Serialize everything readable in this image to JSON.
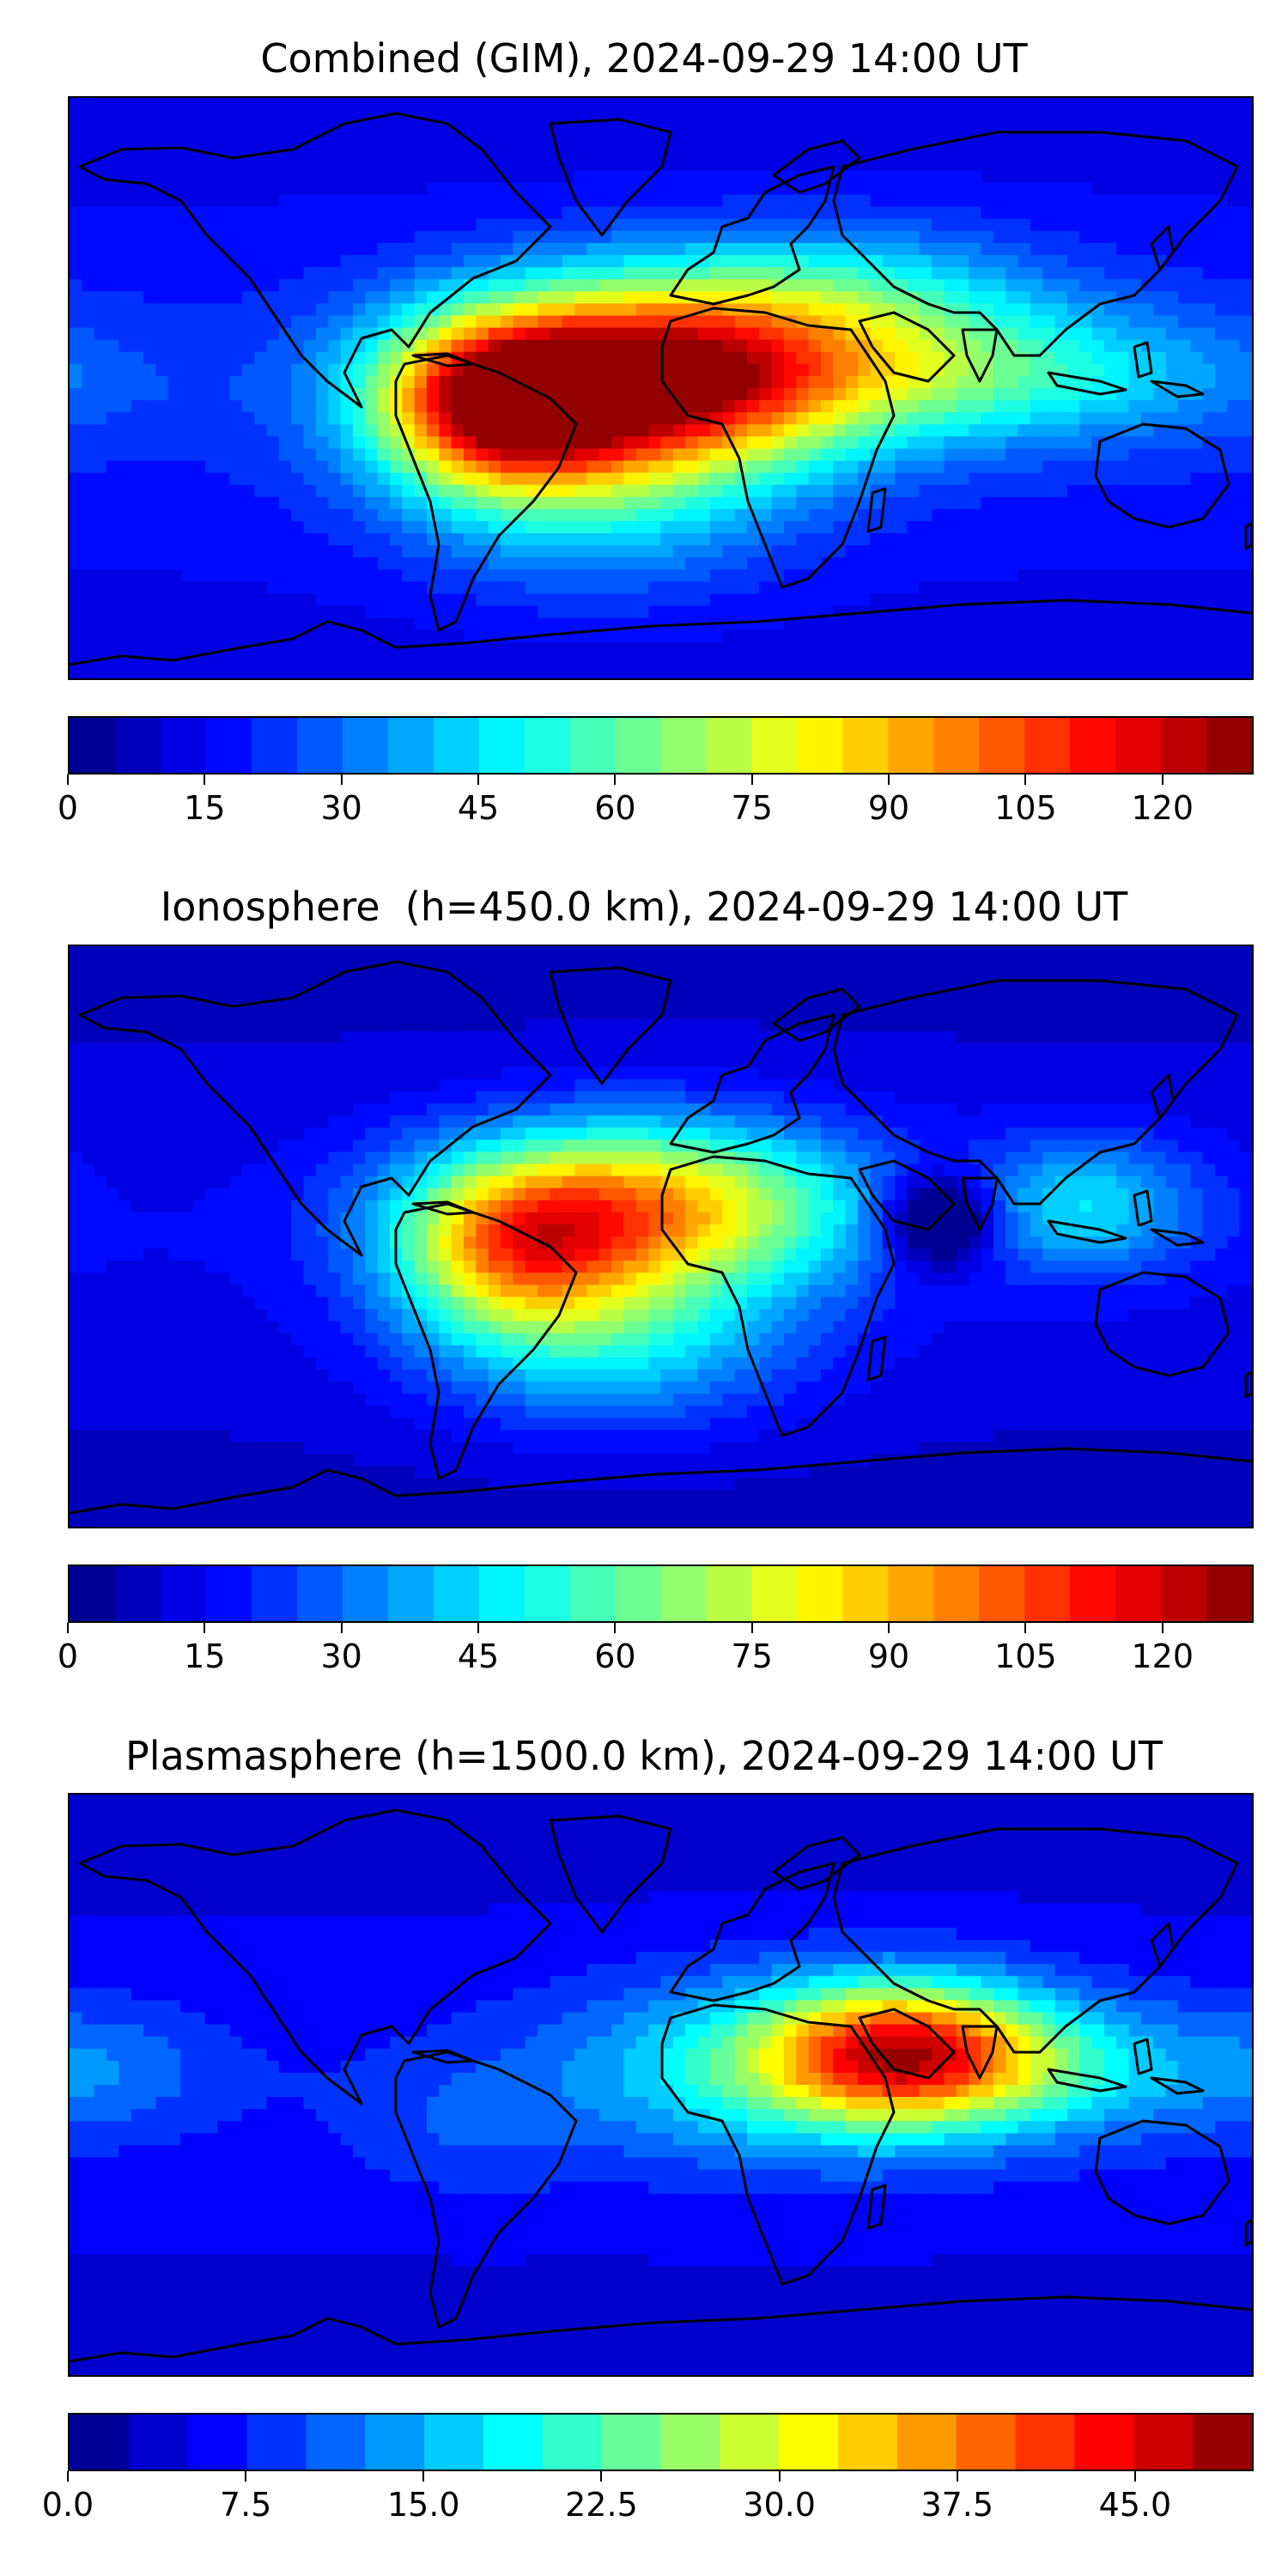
{
  "maps": [
    {
      "title": "Combined (GIM), 2024-09-29 14:00 UT",
      "colorbar": {
        "min": 0,
        "max": 130,
        "levels": 26,
        "tick_values": [
          0,
          15,
          30,
          45,
          60,
          75,
          90,
          105,
          120
        ],
        "tick_labels": [
          "0",
          "15",
          "30",
          "45",
          "60",
          "75",
          "90",
          "105",
          "120"
        ]
      },
      "field": {
        "background": 22,
        "blobs": [
          {
            "lon": 0,
            "lat": 5,
            "value": 120,
            "spread_lon": 45,
            "spread_lat": 20,
            "note": "equatorial Africa peak"
          },
          {
            "lon": -50,
            "lat": -5,
            "value": 95,
            "spread_lon": 25,
            "spread_lat": 18,
            "note": "South America"
          },
          {
            "lon": 100,
            "lat": 5,
            "value": 55,
            "spread_lon": 50,
            "spread_lat": 15,
            "note": "SE Asia tongue"
          },
          {
            "lon": -20,
            "lat": -25,
            "value": 55,
            "spread_lon": 40,
            "spread_lat": 25,
            "note": "South Atlantic"
          },
          {
            "lon": 60,
            "lat": 30,
            "value": 45,
            "spread_lon": 40,
            "spread_lat": 15,
            "note": "Middle East"
          }
        ]
      }
    },
    {
      "title": "Ionosphere  (h=450.0 km), 2024-09-29 14:00 UT",
      "colorbar": {
        "min": 0,
        "max": 130,
        "levels": 26,
        "tick_values": [
          0,
          15,
          30,
          45,
          60,
          75,
          90,
          105,
          120
        ],
        "tick_labels": [
          "0",
          "15",
          "30",
          "45",
          "60",
          "75",
          "90",
          "105",
          "120"
        ]
      },
      "field": {
        "background": 15,
        "blobs": [
          {
            "lon": -5,
            "lat": 10,
            "value": 90,
            "spread_lon": 45,
            "spread_lat": 18,
            "note": "Africa / Atlantic peak"
          },
          {
            "lon": -45,
            "lat": -5,
            "value": 65,
            "spread_lon": 25,
            "spread_lat": 18,
            "note": "South America"
          },
          {
            "lon": -15,
            "lat": -30,
            "value": 50,
            "spread_lon": 40,
            "spread_lat": 20,
            "note": "South Atlantic"
          },
          {
            "lon": 130,
            "lat": 10,
            "value": 45,
            "spread_lon": 25,
            "spread_lat": 15,
            "note": "W Pacific"
          },
          {
            "lon": 85,
            "lat": 5,
            "value": -25,
            "spread_lon": 12,
            "spread_lat": 10,
            "note": "Bay of Bengal depletion"
          }
        ]
      }
    },
    {
      "title": "Plasmasphere (h=1500.0 km), 2024-09-29 14:00 UT",
      "colorbar": {
        "min": 0,
        "max": 50,
        "levels": 20,
        "tick_values": [
          0,
          7.5,
          15,
          22.5,
          30,
          37.5,
          45
        ],
        "tick_labels": [
          "0.0",
          "7.5",
          "15.0",
          "22.5",
          "30.0",
          "37.5",
          "45.0"
        ]
      },
      "field": {
        "background": 7,
        "blobs": [
          {
            "lon": 75,
            "lat": 10,
            "value": 38,
            "spread_lon": 30,
            "spread_lat": 15,
            "note": "Indian Ocean peak"
          },
          {
            "lon": 40,
            "lat": 5,
            "value": 20,
            "spread_lon": 50,
            "spread_lat": 20,
            "note": "Africa / Arabia"
          },
          {
            "lon": 130,
            "lat": 5,
            "value": 14,
            "spread_lon": 30,
            "spread_lat": 15,
            "note": "W Pacific"
          },
          {
            "lon": -170,
            "lat": 5,
            "value": 12,
            "spread_lon": 25,
            "spread_lat": 15,
            "note": "Central Pacific"
          },
          {
            "lon": -60,
            "lat": -15,
            "value": 10,
            "spread_lon": 25,
            "spread_lat": 15,
            "note": "South America"
          }
        ]
      }
    }
  ]
}
